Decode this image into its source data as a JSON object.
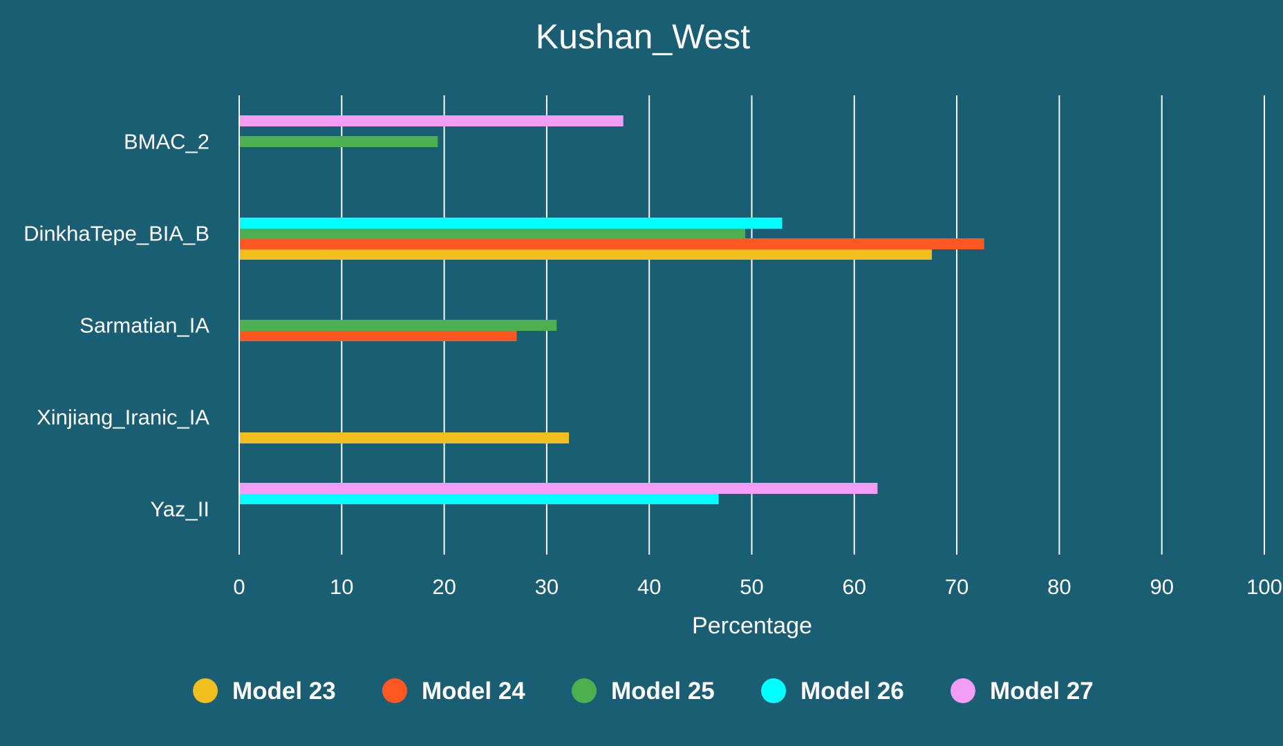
{
  "chart_data": {
    "type": "bar",
    "orientation": "horizontal",
    "title": "Kushan_West",
    "xlabel": "Percentage",
    "ylabel": "",
    "xlim": [
      0,
      100
    ],
    "x_ticks": [
      "0",
      "10",
      "20",
      "30",
      "40",
      "50",
      "60",
      "70",
      "80",
      "90",
      "100"
    ],
    "grid": "vertical",
    "legend_position": "bottom",
    "categories": [
      "BMAC_2",
      "DinkhaTepe_BIA_B",
      "Sarmatian_IA",
      "Xinjiang_Iranic_IA",
      "Yaz_II"
    ],
    "series": [
      {
        "name": "Model 23",
        "color": "#f0bf1e",
        "values": [
          null,
          67.5,
          null,
          32.1,
          null
        ]
      },
      {
        "name": "Model 24",
        "color": "#ff5722",
        "values": [
          null,
          72.6,
          27.0,
          null,
          null
        ]
      },
      {
        "name": "Model 25",
        "color": "#4caf50",
        "values": [
          19.3,
          49.3,
          30.9,
          null,
          null
        ]
      },
      {
        "name": "Model 26",
        "color": "#00ffff",
        "values": [
          null,
          52.9,
          null,
          null,
          46.7
        ]
      },
      {
        "name": "Model 27",
        "color": "#f29cf6",
        "values": [
          37.4,
          null,
          null,
          null,
          62.2
        ]
      }
    ]
  },
  "colors": {
    "background": "#1a5e74",
    "text": "#ffffff",
    "grid": "#ffffff"
  }
}
